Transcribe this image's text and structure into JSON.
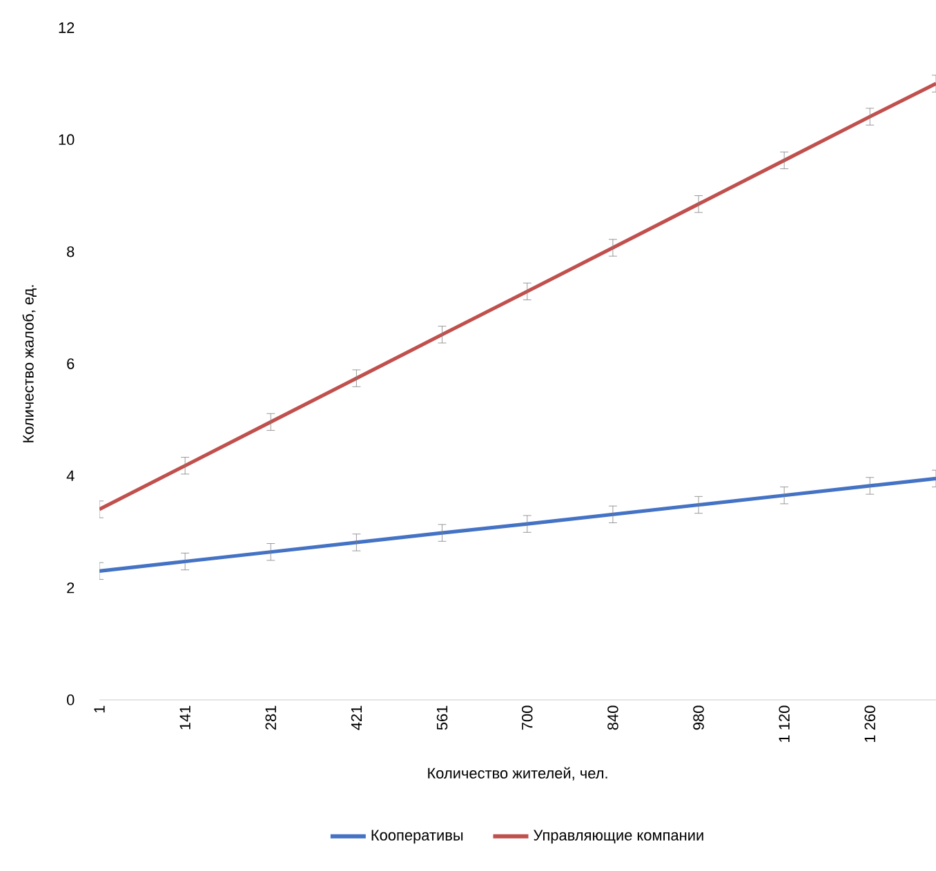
{
  "chart_data": {
    "type": "line",
    "xlabel": "Количество жителей, чел.",
    "ylabel": "Количество жалоб, ед.",
    "x": [
      1,
      141,
      281,
      421,
      561,
      700,
      840,
      980,
      1120,
      1260,
      1368
    ],
    "series": [
      {
        "name": "Кооперативы",
        "color": "#4472c4",
        "values": [
          2.3,
          2.47,
          2.64,
          2.81,
          2.98,
          3.14,
          3.31,
          3.48,
          3.65,
          3.82,
          3.95
        ],
        "errors": [
          0.15,
          0.15,
          0.15,
          0.15,
          0.15,
          0.15,
          0.15,
          0.15,
          0.15,
          0.15,
          0.15
        ]
      },
      {
        "name": "Управляющие компании",
        "color": "#c0504d",
        "values": [
          3.4,
          4.18,
          4.96,
          5.74,
          6.52,
          7.29,
          8.07,
          8.85,
          9.63,
          10.41,
          11.0
        ],
        "errors": [
          0.15,
          0.15,
          0.15,
          0.15,
          0.15,
          0.15,
          0.15,
          0.15,
          0.15,
          0.15,
          0.15
        ]
      }
    ],
    "xlim": [
      1,
      1368
    ],
    "ylim": [
      0,
      12
    ],
    "xticks": [
      1,
      141,
      281,
      421,
      561,
      700,
      840,
      980,
      {
        "value": 1120,
        "label": "1 120"
      },
      {
        "value": 1260,
        "label": "1 260"
      }
    ],
    "yticks": [
      0,
      2,
      4,
      6,
      8,
      10,
      12
    ],
    "grid": false,
    "legend": "bottom",
    "marker": "none",
    "line_style": "solid"
  }
}
